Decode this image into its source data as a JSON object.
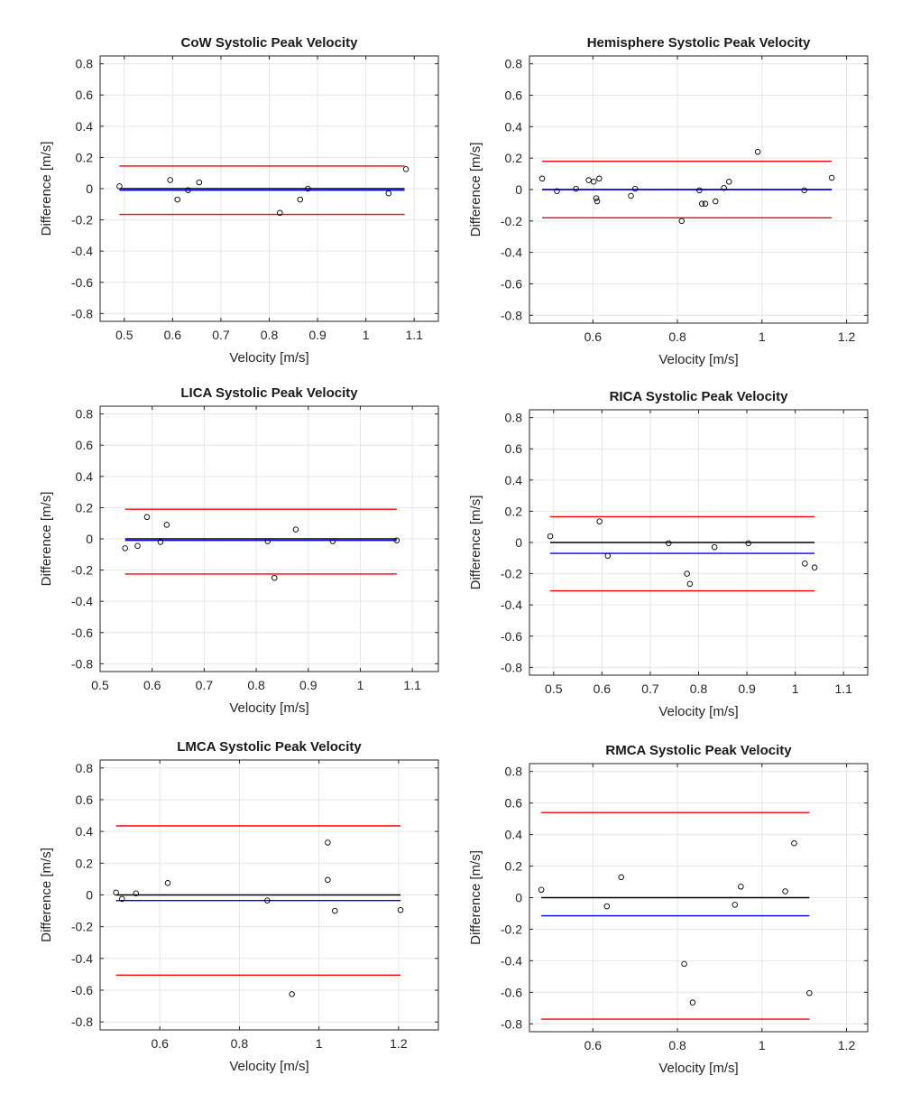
{
  "colors": {
    "zero_line": "#000000",
    "mean_line": "#0000ff",
    "limits": "#ff0000",
    "points": "#000000"
  },
  "chart_data": [
    {
      "type": "scatter",
      "title": "CoW Systolic Peak Velocity",
      "xlabel": "Velocity [m/s]",
      "ylabel": "Difference [m/s]",
      "xlim": [
        0.45,
        1.15
      ],
      "ylim": [
        -0.85,
        0.85
      ],
      "xticks": [
        0.5,
        0.6,
        0.7,
        0.8,
        0.9,
        1,
        1.1
      ],
      "xtick_labels": [
        "0.5",
        "0.6",
        "0.7",
        "0.8",
        "0.9",
        "1",
        "1.1"
      ],
      "yticks": [
        -0.8,
        -0.6,
        -0.4,
        -0.2,
        0,
        0.2,
        0.4,
        0.6,
        0.8
      ],
      "ytick_labels": [
        "-0.8",
        "-0.6",
        "-0.4",
        "-0.2",
        "0",
        "0.2",
        "0.4",
        "0.6",
        "0.8"
      ],
      "line_x": [
        0.49,
        1.08
      ],
      "zero": 0,
      "mean": -0.01,
      "upper": 0.145,
      "lower": -0.165,
      "points": [
        [
          0.49,
          0.015
        ],
        [
          0.595,
          0.055
        ],
        [
          0.61,
          -0.07
        ],
        [
          0.632,
          -0.01
        ],
        [
          0.655,
          0.04
        ],
        [
          0.822,
          -0.155
        ],
        [
          0.864,
          -0.07
        ],
        [
          0.88,
          0.0
        ],
        [
          1.047,
          -0.03
        ],
        [
          1.083,
          0.125
        ]
      ]
    },
    {
      "type": "scatter",
      "title": "Hemisphere Systolic Peak Velocity",
      "xlabel": "Velocity [m/s]",
      "ylabel": "Difference [m/s]",
      "xlim": [
        0.45,
        1.25
      ],
      "ylim": [
        -0.85,
        0.85
      ],
      "xticks": [
        0.6,
        0.8,
        1,
        1.2
      ],
      "xtick_labels": [
        "0.6",
        "0.8",
        "1",
        "1.2"
      ],
      "yticks": [
        -0.8,
        -0.6,
        -0.4,
        -0.2,
        0,
        0.2,
        0.4,
        0.6,
        0.8
      ],
      "ytick_labels": [
        "-0.8",
        "-0.6",
        "-0.4",
        "-0.2",
        "0",
        "0.2",
        "0.4",
        "0.6",
        "0.8"
      ],
      "line_x": [
        0.48,
        1.165
      ],
      "zero": 0,
      "mean": 0.0,
      "upper": 0.18,
      "lower": -0.18,
      "points": [
        [
          0.48,
          0.07
        ],
        [
          0.515,
          -0.01
        ],
        [
          0.56,
          0.005
        ],
        [
          0.59,
          0.06
        ],
        [
          0.602,
          0.05
        ],
        [
          0.608,
          -0.055
        ],
        [
          0.61,
          -0.075
        ],
        [
          0.615,
          0.07
        ],
        [
          0.69,
          -0.04
        ],
        [
          0.7,
          0.005
        ],
        [
          0.81,
          -0.2
        ],
        [
          0.852,
          -0.005
        ],
        [
          0.858,
          -0.09
        ],
        [
          0.866,
          -0.09
        ],
        [
          0.89,
          -0.075
        ],
        [
          0.91,
          0.01
        ],
        [
          0.922,
          0.05
        ],
        [
          0.99,
          0.24
        ],
        [
          1.1,
          -0.005
        ],
        [
          1.165,
          0.075
        ]
      ]
    },
    {
      "type": "scatter",
      "title": "LICA Systolic Peak Velocity",
      "xlabel": "Velocity [m/s]",
      "ylabel": "Difference [m/s]",
      "xlim": [
        0.5,
        1.15
      ],
      "ylim": [
        -0.85,
        0.85
      ],
      "xticks": [
        0.5,
        0.6,
        0.7,
        0.8,
        0.9,
        1,
        1.1
      ],
      "xtick_labels": [
        "0.5",
        "0.6",
        "0.7",
        "0.8",
        "0.9",
        "1",
        "1.1"
      ],
      "yticks": [
        -0.8,
        -0.6,
        -0.4,
        -0.2,
        0,
        0.2,
        0.4,
        0.6,
        0.8
      ],
      "ytick_labels": [
        "-0.8",
        "-0.6",
        "-0.4",
        "-0.2",
        "0",
        "0.2",
        "0.4",
        "0.6",
        "0.8"
      ],
      "line_x": [
        0.548,
        1.07
      ],
      "zero": 0,
      "mean": -0.01,
      "upper": 0.19,
      "lower": -0.225,
      "points": [
        [
          0.548,
          -0.06
        ],
        [
          0.572,
          -0.045
        ],
        [
          0.59,
          0.14
        ],
        [
          0.616,
          -0.02
        ],
        [
          0.628,
          0.09
        ],
        [
          0.822,
          -0.015
        ],
        [
          0.835,
          -0.25
        ],
        [
          0.876,
          0.06
        ],
        [
          0.947,
          -0.015
        ],
        [
          1.07,
          -0.01
        ]
      ]
    },
    {
      "type": "scatter",
      "title": "RICA Systolic Peak Velocity",
      "xlabel": "Velocity [m/s]",
      "ylabel": "Difference [m/s]",
      "xlim": [
        0.45,
        1.15
      ],
      "ylim": [
        -0.85,
        0.85
      ],
      "xticks": [
        0.5,
        0.6,
        0.7,
        0.8,
        0.9,
        1,
        1.1
      ],
      "xtick_labels": [
        "0.5",
        "0.6",
        "0.7",
        "0.8",
        "0.9",
        "1",
        "1.1"
      ],
      "yticks": [
        -0.8,
        -0.6,
        -0.4,
        -0.2,
        0,
        0.2,
        0.4,
        0.6,
        0.8
      ],
      "ytick_labels": [
        "-0.8",
        "-0.6",
        "-0.4",
        "-0.2",
        "0",
        "0.2",
        "0.4",
        "0.6",
        "0.8"
      ],
      "line_x": [
        0.493,
        1.04
      ],
      "zero": 0,
      "mean": -0.07,
      "upper": 0.165,
      "lower": -0.31,
      "points": [
        [
          0.493,
          0.04
        ],
        [
          0.595,
          0.135
        ],
        [
          0.612,
          -0.085
        ],
        [
          0.738,
          -0.005
        ],
        [
          0.776,
          -0.2
        ],
        [
          0.782,
          -0.265
        ],
        [
          0.833,
          -0.03
        ],
        [
          0.903,
          -0.005
        ],
        [
          1.02,
          -0.135
        ],
        [
          1.04,
          -0.16
        ]
      ]
    },
    {
      "type": "scatter",
      "title": "LMCA Systolic Peak Velocity",
      "xlabel": "Velocity [m/s]",
      "ylabel": "Difference [m/s]",
      "xlim": [
        0.45,
        1.3
      ],
      "ylim": [
        -0.85,
        0.85
      ],
      "xticks": [
        0.6,
        0.8,
        1,
        1.2
      ],
      "xtick_labels": [
        "0.6",
        "0.8",
        "1",
        "1.2"
      ],
      "yticks": [
        -0.8,
        -0.6,
        -0.4,
        -0.2,
        0,
        0.2,
        0.4,
        0.6,
        0.8
      ],
      "ytick_labels": [
        "-0.8",
        "-0.6",
        "-0.4",
        "-0.2",
        "0",
        "0.2",
        "0.4",
        "0.6",
        "0.8"
      ],
      "line_x": [
        0.49,
        1.205
      ],
      "zero": 0,
      "mean": -0.035,
      "upper": 0.435,
      "lower": -0.505,
      "points": [
        [
          0.49,
          0.015
        ],
        [
          0.505,
          -0.025
        ],
        [
          0.54,
          0.01
        ],
        [
          0.62,
          0.075
        ],
        [
          0.87,
          -0.035
        ],
        [
          0.932,
          -0.625
        ],
        [
          1.022,
          0.33
        ],
        [
          1.022,
          0.095
        ],
        [
          1.04,
          -0.1
        ],
        [
          1.205,
          -0.095
        ]
      ]
    },
    {
      "type": "scatter",
      "title": "RMCA Systolic Peak Velocity",
      "xlabel": "Velocity [m/s]",
      "ylabel": "Difference [m/s]",
      "xlim": [
        0.45,
        1.25
      ],
      "ylim": [
        -0.85,
        0.85
      ],
      "xticks": [
        0.6,
        0.8,
        1,
        1.2
      ],
      "xtick_labels": [
        "0.6",
        "0.8",
        "1",
        "1.2"
      ],
      "yticks": [
        -0.8,
        -0.6,
        -0.4,
        -0.2,
        0,
        0.2,
        0.4,
        0.6,
        0.8
      ],
      "ytick_labels": [
        "-0.8",
        "-0.6",
        "-0.4",
        "-0.2",
        "0",
        "0.2",
        "0.4",
        "0.6",
        "0.8"
      ],
      "line_x": [
        0.478,
        1.112
      ],
      "zero": 0,
      "mean": -0.115,
      "upper": 0.54,
      "lower": -0.77,
      "points": [
        [
          0.478,
          0.05
        ],
        [
          0.633,
          -0.055
        ],
        [
          0.667,
          0.13
        ],
        [
          0.816,
          -0.42
        ],
        [
          0.836,
          -0.665
        ],
        [
          0.936,
          -0.045
        ],
        [
          0.95,
          0.07
        ],
        [
          1.055,
          0.04
        ],
        [
          1.076,
          0.345
        ],
        [
          1.112,
          -0.605
        ]
      ]
    }
  ]
}
